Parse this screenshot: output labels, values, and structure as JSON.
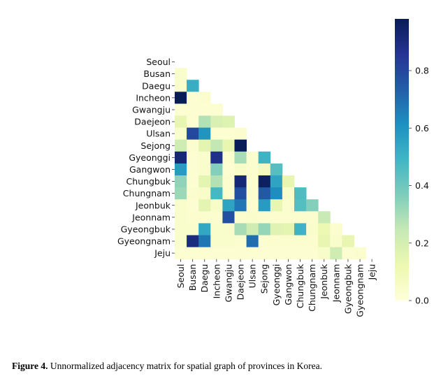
{
  "caption": {
    "label": "Figure 4.",
    "text": " Unnormalized adjacency matrix for spatial graph of provinces in Korea."
  },
  "chart_data": {
    "type": "heatmap",
    "mask": "lower-triangular",
    "labels": [
      "Seoul",
      "Busan",
      "Daegu",
      "Incheon",
      "Gwangju",
      "Daejeon",
      "Ulsan",
      "Sejong",
      "Gyeonggi",
      "Gangwon",
      "Chungbuk",
      "Chungnam",
      "Jeonbuk",
      "Jeonnam",
      "Gyeongbuk",
      "Gyeongnam",
      "Jeju"
    ],
    "colorscale": "YlGnBu",
    "vmin": 0,
    "vmax": 0.98,
    "colorbar_ticks": [
      0.0,
      0.2,
      0.4,
      0.6,
      0.8
    ],
    "colorbar_tick_labels": [
      "0.0",
      "0.2",
      "0.4",
      "0.6",
      "0.8"
    ],
    "values": [
      [],
      [
        0.04
      ],
      [
        0.04,
        0.52
      ],
      [
        0.98,
        0.02,
        0.03
      ],
      [
        0.02,
        0.02,
        0.02,
        0.02
      ],
      [
        0.14,
        0.02,
        0.28,
        0.19,
        0.17
      ],
      [
        0.04,
        0.8,
        0.6,
        0.02,
        0.02,
        0.03
      ],
      [
        0.22,
        0.03,
        0.15,
        0.25,
        0.14,
        0.98
      ],
      [
        0.92,
        0.02,
        0.04,
        0.88,
        0.03,
        0.3,
        0.03,
        0.5
      ],
      [
        0.58,
        0.02,
        0.04,
        0.36,
        0.02,
        0.05,
        0.03,
        0.08,
        0.45
      ],
      [
        0.34,
        0.02,
        0.15,
        0.28,
        0.03,
        0.92,
        0.03,
        0.96,
        0.55,
        0.14
      ],
      [
        0.32,
        0.03,
        0.05,
        0.48,
        0.03,
        0.78,
        0.03,
        0.75,
        0.62,
        0.04,
        0.46
      ],
      [
        0.04,
        0.02,
        0.15,
        0.05,
        0.55,
        0.68,
        0.03,
        0.58,
        0.14,
        0.03,
        0.45,
        0.36
      ],
      [
        0.04,
        0.03,
        0.03,
        0.03,
        0.78,
        0.03,
        0.04,
        0.03,
        0.03,
        0.03,
        0.03,
        0.03,
        0.24
      ],
      [
        0.04,
        0.04,
        0.54,
        0.04,
        0.04,
        0.3,
        0.22,
        0.33,
        0.16,
        0.15,
        0.5,
        0.04,
        0.12,
        0.03
      ],
      [
        0.04,
        0.9,
        0.68,
        0.04,
        0.04,
        0.03,
        0.7,
        0.03,
        0.03,
        0.03,
        0.03,
        0.03,
        0.14,
        0.04,
        0.14
      ],
      [
        0.02,
        0.02,
        0.02,
        0.02,
        0.02,
        0.02,
        0.02,
        0.02,
        0.02,
        0.02,
        0.02,
        0.02,
        0.05,
        0.22,
        0.02,
        0.03
      ]
    ]
  }
}
